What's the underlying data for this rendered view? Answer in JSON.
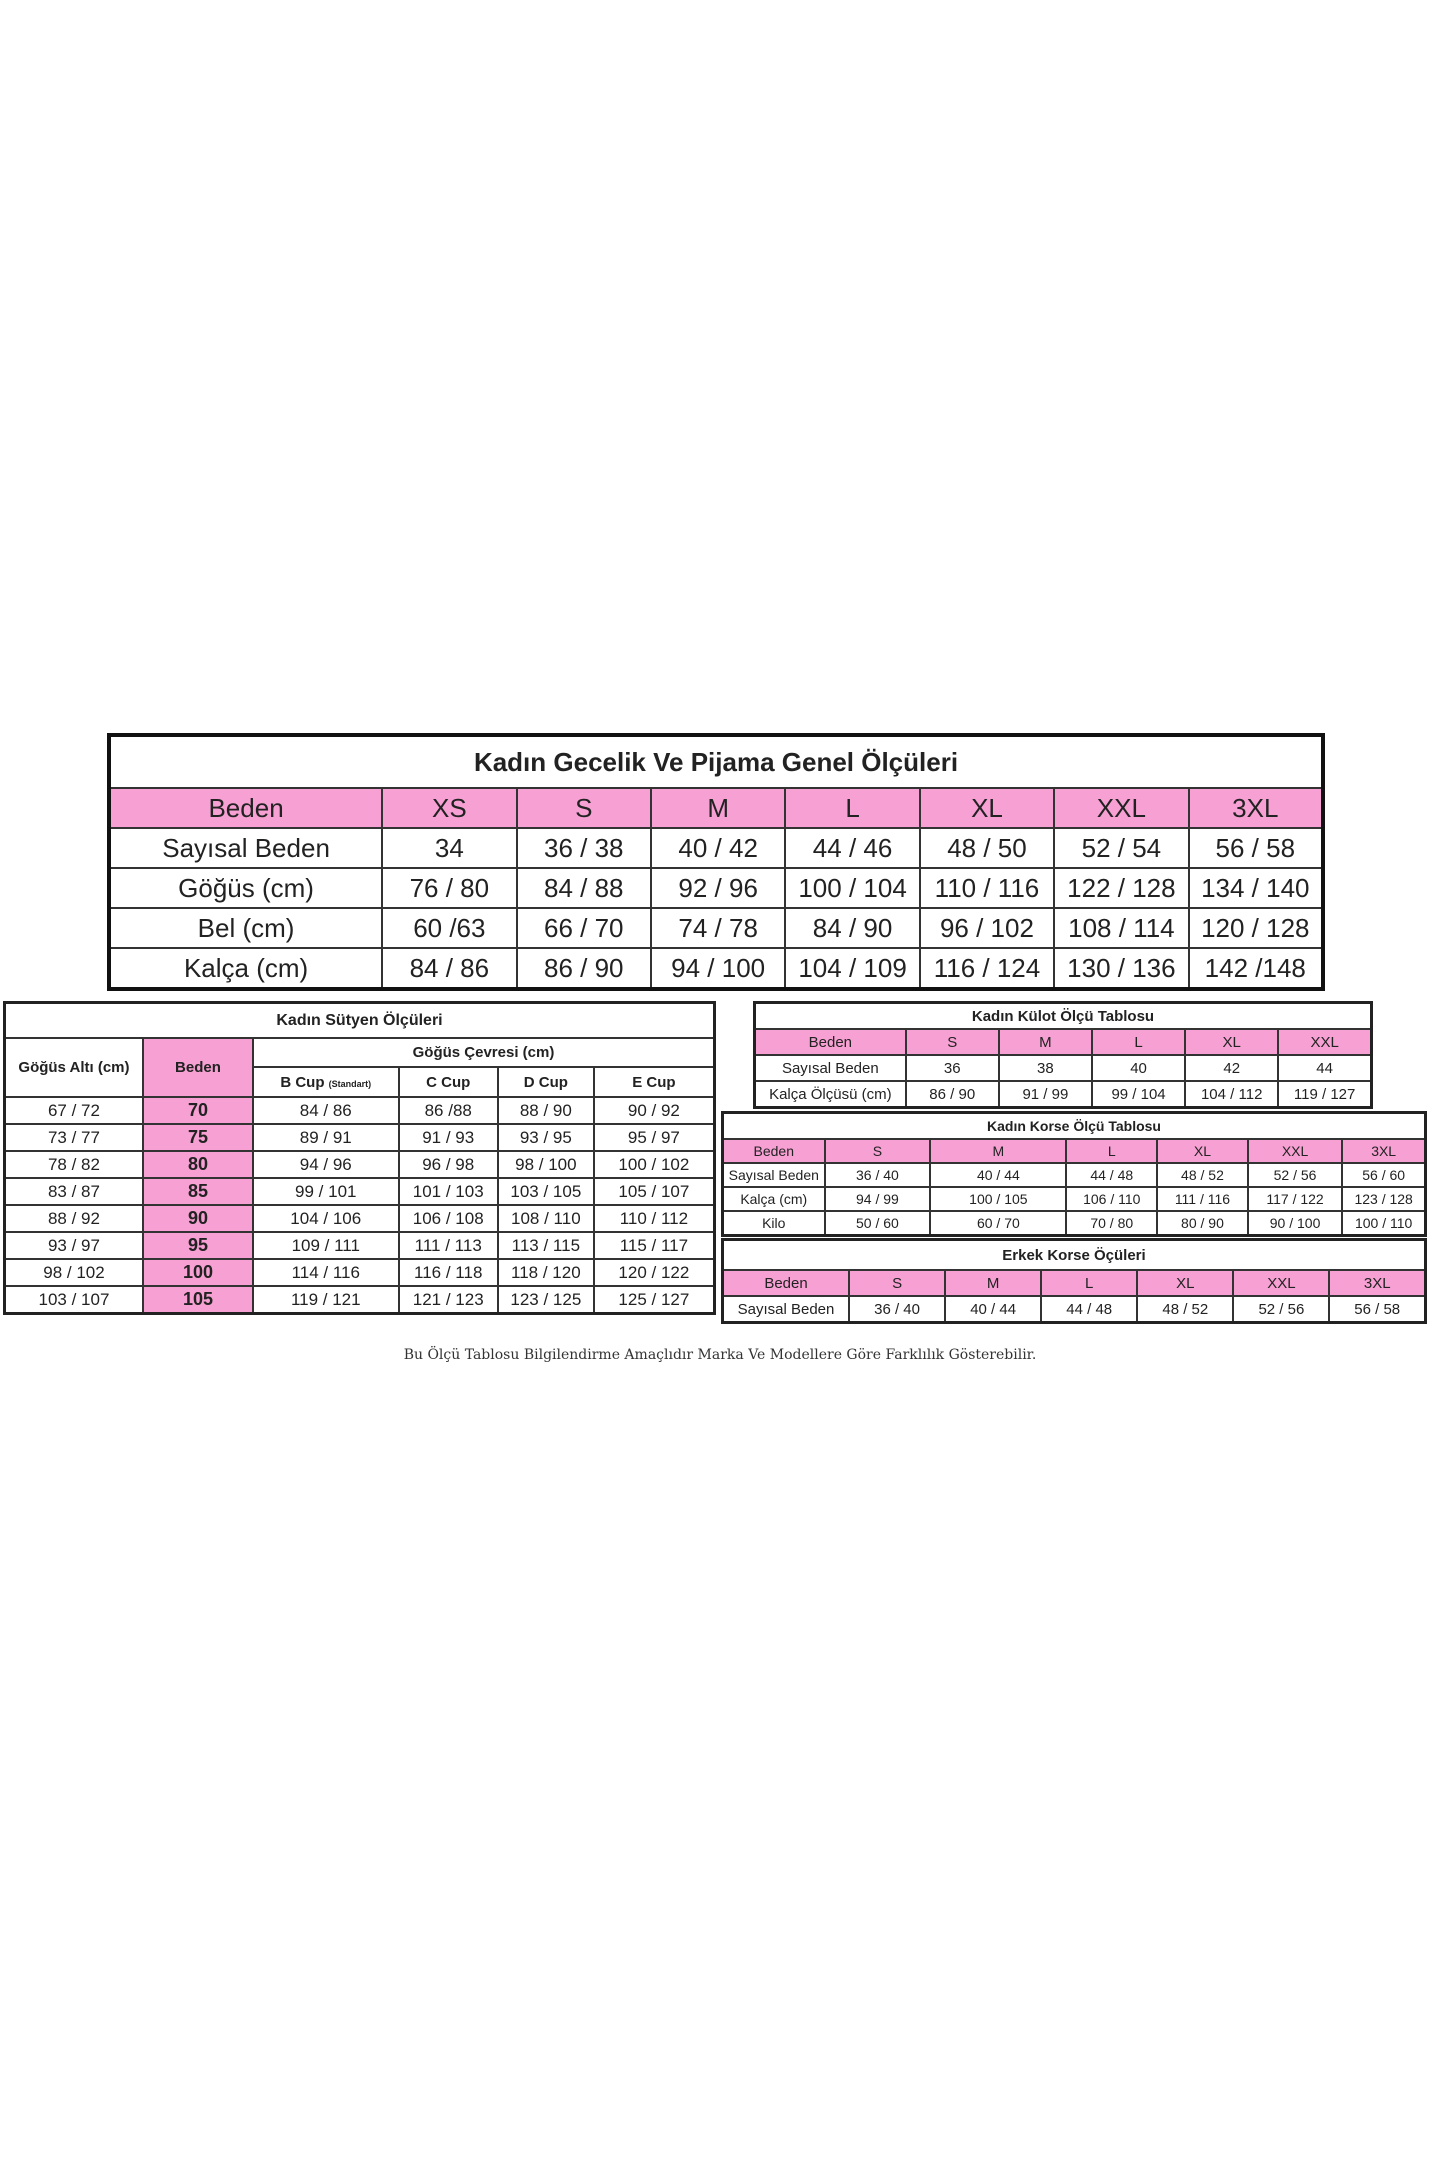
{
  "colors": {
    "header_pink": "#f7a0d3",
    "border": "#222222"
  },
  "main_table": {
    "title": "Kadın Gecelik Ve Pijama Genel Ölçüleri",
    "header": [
      "Beden",
      "XS",
      "S",
      "M",
      "L",
      "XL",
      "XXL",
      "3XL"
    ],
    "rows": [
      [
        "Sayısal Beden",
        "34",
        "36 / 38",
        "40 / 42",
        "44 / 46",
        "48 / 50",
        "52 / 54",
        "56 / 58"
      ],
      [
        "Göğüs (cm)",
        "76 / 80",
        "84 / 88",
        "92 / 96",
        "100 / 104",
        "110 / 116",
        "122 / 128",
        "134 / 140"
      ],
      [
        "Bel (cm)",
        "60 /63",
        "66 / 70",
        "74 / 78",
        "84 / 90",
        "96 / 102",
        "108 / 114",
        "120 / 128"
      ],
      [
        "Kalça (cm)",
        "84 / 86",
        "86 / 90",
        "94 / 100",
        "104 / 109",
        "116 / 124",
        "130 / 136",
        "142 /148"
      ]
    ]
  },
  "sutyen_table": {
    "title": "Kadın Sütyen Ölçüleri",
    "col_underbust": "Göğüs Altı (cm)",
    "col_size": "Beden",
    "group_label": "Göğüs Çevresi (cm)",
    "cups": [
      "B Cup",
      "C Cup",
      "D Cup",
      "E Cup"
    ],
    "b_cup_note": "(Standart)",
    "rows": [
      [
        "67 / 72",
        "70",
        "84 / 86",
        "86 /88",
        "88 / 90",
        "90 / 92"
      ],
      [
        "73 / 77",
        "75",
        "89 / 91",
        "91 / 93",
        "93 / 95",
        "95 / 97"
      ],
      [
        "78 / 82",
        "80",
        "94 / 96",
        "96 / 98",
        "98 / 100",
        "100 / 102"
      ],
      [
        "83 / 87",
        "85",
        "99 / 101",
        "101 / 103",
        "103 / 105",
        "105 / 107"
      ],
      [
        "88 / 92",
        "90",
        "104 / 106",
        "106 / 108",
        "108 / 110",
        "110 / 112"
      ],
      [
        "93 / 97",
        "95",
        "109 / 111",
        "111 / 113",
        "113 / 115",
        "115 / 117"
      ],
      [
        "98 / 102",
        "100",
        "114 / 116",
        "116 / 118",
        "118 / 120",
        "120 / 122"
      ],
      [
        "103 / 107",
        "105",
        "119 / 121",
        "121 / 123",
        "123 / 125",
        "125 / 127"
      ]
    ]
  },
  "kulot_table": {
    "title": "Kadın Külot Ölçü Tablosu",
    "header": [
      "Beden",
      "S",
      "M",
      "L",
      "XL",
      "XXL"
    ],
    "rows": [
      [
        "Sayısal Beden",
        "36",
        "38",
        "40",
        "42",
        "44"
      ],
      [
        "Kalça Ölçüsü (cm)",
        "86 / 90",
        "91 / 99",
        "99 / 104",
        "104 / 112",
        "119 / 127"
      ]
    ]
  },
  "korse_table": {
    "title": "Kadın Korse Ölçü Tablosu",
    "header": [
      "Beden",
      "S",
      "M",
      "L",
      "XL",
      "XXL",
      "3XL"
    ],
    "rows": [
      [
        "Sayısal Beden",
        "36 / 40",
        "40 / 44",
        "44 / 48",
        "48 / 52",
        "52 / 56",
        "56 / 60"
      ],
      [
        "Kalça (cm)",
        "94 / 99",
        "100 / 105",
        "106 / 110",
        "111 / 116",
        "117 / 122",
        "123 / 128"
      ],
      [
        "Kilo",
        "50 / 60",
        "60 / 70",
        "70 / 80",
        "80 / 90",
        "90 / 100",
        "100 / 110"
      ]
    ]
  },
  "erkek_table": {
    "title": "Erkek Korse Öçüleri",
    "header": [
      "Beden",
      "S",
      "M",
      "L",
      "XL",
      "XXL",
      "3XL"
    ],
    "rows": [
      [
        "Sayısal Beden",
        "36 / 40",
        "40 / 44",
        "44 / 48",
        "48 / 52",
        "52 / 56",
        "56 / 58"
      ]
    ]
  },
  "footer": {
    "note": "Bu Ölçü Tablosu Bilgilendirme Amaçlıdır Marka Ve Modellere Göre Farklılık Gösterebilir."
  }
}
